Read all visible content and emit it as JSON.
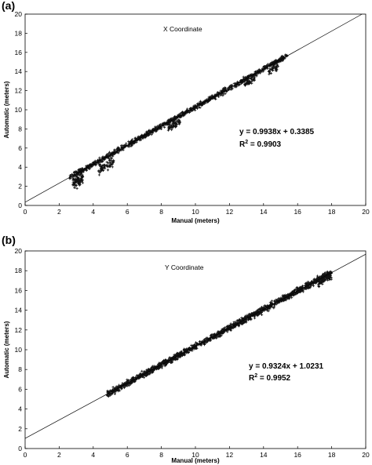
{
  "chart_data": [
    {
      "panel_label": "(a)",
      "type": "scatter",
      "title": "X Coordinate",
      "xlabel": "Manual (meters)",
      "ylabel": "Automatic (meters)",
      "xlim": [
        0,
        20
      ],
      "ylim": [
        0,
        20
      ],
      "xticks": [
        0,
        2,
        4,
        6,
        8,
        10,
        12,
        14,
        16,
        18,
        20
      ],
      "yticks": [
        0,
        2,
        4,
        6,
        8,
        10,
        12,
        14,
        16,
        18,
        20
      ],
      "grid": false,
      "marker": "+",
      "equation": "y = 0.9938x + 0.3385",
      "r2_label": "R",
      "r2_sup": "2",
      "r2_value": " = 0.9903",
      "fit": {
        "slope": 0.9938,
        "intercept": 0.3385
      },
      "clusters": [
        {
          "x": [
            2.6,
            15.4
          ],
          "y_offset": 0.0,
          "spread": 0.25,
          "count": 1100
        },
        {
          "x": [
            2.8,
            3.4
          ],
          "y_offset": -0.8,
          "spread": 0.6,
          "count": 90
        },
        {
          "x": [
            4.3,
            5.2
          ],
          "y_offset": -0.9,
          "spread": 0.5,
          "count": 70
        },
        {
          "x": [
            8.4,
            9.1
          ],
          "y_offset": -0.6,
          "spread": 0.4,
          "count": 60
        },
        {
          "x": [
            12.9,
            13.5
          ],
          "y_offset": -0.5,
          "spread": 0.3,
          "count": 45
        },
        {
          "x": [
            14.3,
            14.9
          ],
          "y_offset": -0.6,
          "spread": 0.3,
          "count": 35
        }
      ]
    },
    {
      "panel_label": "(b)",
      "type": "scatter",
      "title": "Y Coordinate",
      "xlabel": "Manual (meters)",
      "ylabel": "Automatic (meters)",
      "xlim": [
        0,
        20
      ],
      "ylim": [
        0,
        20
      ],
      "xticks": [
        0,
        2,
        4,
        6,
        8,
        10,
        12,
        14,
        16,
        18,
        20
      ],
      "yticks": [
        0,
        2,
        4,
        6,
        8,
        10,
        12,
        14,
        16,
        18,
        20
      ],
      "grid": false,
      "marker": "+",
      "equation": "y = 0.9324x + 1.0231",
      "r2_label": "R",
      "r2_sup": "2",
      "r2_value": " = 0.9952",
      "fit": {
        "slope": 0.9324,
        "intercept": 1.0231
      },
      "clusters": [
        {
          "x": [
            4.8,
            18.0
          ],
          "y_offset": 0.0,
          "spread": 0.3,
          "count": 1600
        },
        {
          "x": [
            17.2,
            18.0
          ],
          "y_offset": -0.3,
          "spread": 0.4,
          "count": 60
        }
      ]
    }
  ]
}
